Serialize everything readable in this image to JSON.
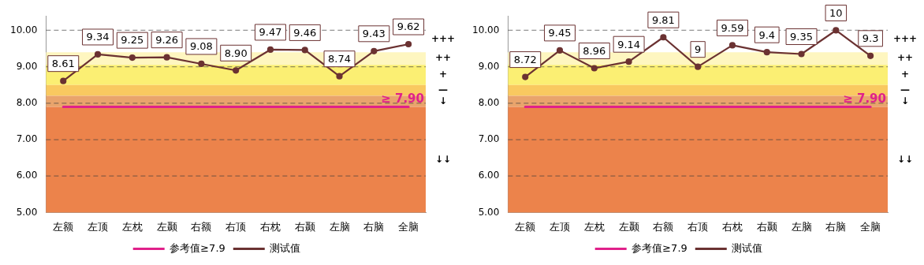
{
  "chart_data": [
    {
      "type": "line",
      "categories": [
        "左额",
        "左顶",
        "左枕",
        "左颞",
        "右额",
        "右顶",
        "右枕",
        "右颞",
        "左脑",
        "右脑",
        "全脑"
      ],
      "series": [
        {
          "name": "参考值≥7.9",
          "color": "#e0218a",
          "values": [
            7.9,
            7.9,
            7.9,
            7.9,
            7.9,
            7.9,
            7.9,
            7.9,
            7.9,
            7.9,
            7.9
          ],
          "marker": "none"
        },
        {
          "name": "测试值",
          "color": "#6b3232",
          "values": [
            8.61,
            9.34,
            9.25,
            9.26,
            9.08,
            8.9,
            9.47,
            9.46,
            8.74,
            9.43,
            9.62
          ],
          "value_labels": [
            "8.61",
            "9.34",
            "9.25",
            "9.26",
            "9.08",
            "8.90",
            "9.47",
            "9.46",
            "8.74",
            "9.43",
            "9.62"
          ],
          "marker": "circle"
        }
      ],
      "ylim": [
        5,
        10.4
      ],
      "yticks": [
        {
          "value": 5,
          "label": "5.00"
        },
        {
          "value": 6,
          "label": "6.00"
        },
        {
          "value": 7,
          "label": "7.00"
        },
        {
          "value": 8,
          "label": "8.00"
        },
        {
          "value": 9,
          "label": "9.00"
        },
        {
          "value": 10,
          "label": "10.00"
        }
      ],
      "grid": "y",
      "line_style": "solid",
      "legend": "bottom",
      "bands": [
        {
          "axis": "y",
          "from": 9.05,
          "to": 9.4,
          "label": "++",
          "color": "#fef6c0"
        },
        {
          "axis": "y",
          "from": 8.5,
          "to": 9.05,
          "label": "+",
          "color": "#fbef73"
        },
        {
          "axis": "y",
          "from": 8.2,
          "to": 8.5,
          "label": "—",
          "color": "#f9c960"
        },
        {
          "axis": "y",
          "from": 7.9,
          "to": 8.2,
          "label": "↓",
          "color": "#e9a46c"
        },
        {
          "axis": "y",
          "from": 5,
          "to": 7.9,
          "label": "↓↓",
          "color": "#ec834b"
        }
      ],
      "annotations": [
        "+++",
        {
          "text": "≥ 7.90",
          "y": 7.9
        }
      ]
    },
    {
      "type": "line",
      "categories": [
        "左额",
        "左顶",
        "左枕",
        "左颞",
        "右额",
        "右顶",
        "右枕",
        "右颞",
        "左脑",
        "右脑",
        "全脑"
      ],
      "series": [
        {
          "name": "参考值≥7.9",
          "color": "#e0218a",
          "values": [
            7.9,
            7.9,
            7.9,
            7.9,
            7.9,
            7.9,
            7.9,
            7.9,
            7.9,
            7.9,
            7.9
          ],
          "marker": "none"
        },
        {
          "name": "测试值",
          "color": "#6b3232",
          "values": [
            8.72,
            9.45,
            8.96,
            9.14,
            9.81,
            9,
            9.59,
            9.4,
            9.35,
            10,
            9.3
          ],
          "value_labels": [
            "8.72",
            "9.45",
            "8.96",
            "9.14",
            "9.81",
            "9",
            "9.59",
            "9.4",
            "9.35",
            "10",
            "9.3"
          ],
          "marker": "circle"
        }
      ],
      "ylim": [
        5,
        10.4
      ],
      "yticks": [
        {
          "value": 5,
          "label": "5.00"
        },
        {
          "value": 6,
          "label": "6.00"
        },
        {
          "value": 7,
          "label": "7.00"
        },
        {
          "value": 8,
          "label": "8.00"
        },
        {
          "value": 9,
          "label": "9.00"
        },
        {
          "value": 10,
          "label": "10.00"
        }
      ],
      "grid": "y",
      "line_style": "solid",
      "legend": "bottom",
      "bands": [
        {
          "axis": "y",
          "from": 9.05,
          "to": 9.4,
          "label": "++",
          "color": "#fef6c0"
        },
        {
          "axis": "y",
          "from": 8.5,
          "to": 9.05,
          "label": "+",
          "color": "#fbef73"
        },
        {
          "axis": "y",
          "from": 8.2,
          "to": 8.5,
          "label": "—",
          "color": "#f9c960"
        },
        {
          "axis": "y",
          "from": 7.9,
          "to": 8.2,
          "label": "↓",
          "color": "#e9a46c"
        },
        {
          "axis": "y",
          "from": 5,
          "to": 7.9,
          "label": "↓↓",
          "color": "#ec834b"
        }
      ],
      "annotations": [
        "+++",
        {
          "text": "≥ 7.90",
          "y": 7.9
        }
      ]
    }
  ]
}
